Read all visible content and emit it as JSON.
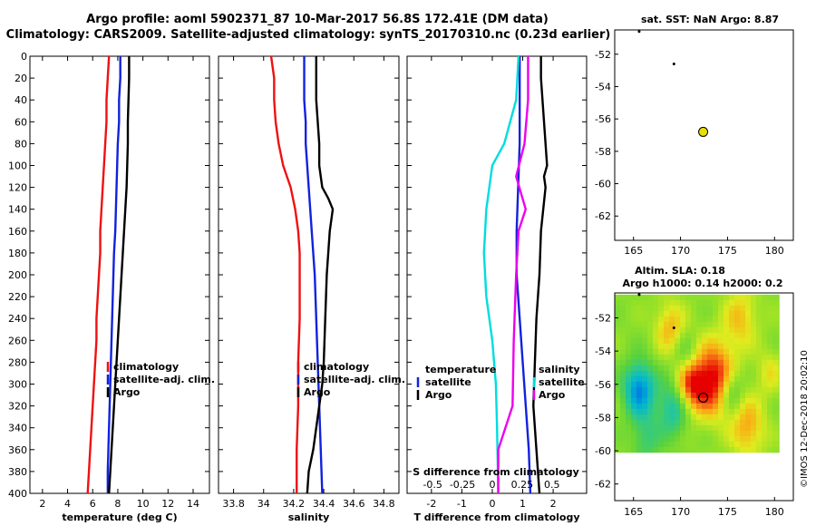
{
  "title_line1": "Argo profile: aoml 5902371_87 10-Mar-2017 56.8S 172.41E (DM data)",
  "title_line2": "Climatology: CARS2009. Satellite-adjusted climatology: synTS_20170310.nc (0.23d earlier)",
  "credit": "©IMOS 12-Dec-2018 20:02:10",
  "colors": {
    "climatology": "#ee1111",
    "satellite": "#1122dd",
    "argo": "#000000",
    "s_satellite": "#00dddd",
    "s_argo": "#ee00ee",
    "profile_marker": "#e8e000"
  },
  "chart_data": [
    {
      "id": "temperature",
      "type": "line",
      "xlabel": "temperature (deg C)",
      "xlim": [
        1,
        15.3
      ],
      "xticks": [
        2,
        4,
        6,
        8,
        10,
        12,
        14
      ],
      "ylim": [
        0,
        400
      ],
      "yticks": [
        0,
        20,
        40,
        60,
        80,
        100,
        120,
        140,
        160,
        180,
        200,
        220,
        240,
        260,
        280,
        300,
        320,
        340,
        360,
        380,
        400
      ],
      "legend": [
        "climatology",
        "satellite-adj. clim.",
        "Argo"
      ],
      "series": [
        {
          "name": "climatology",
          "color_key": "climatology",
          "depth": [
            0,
            20,
            40,
            60,
            80,
            100,
            120,
            140,
            160,
            180,
            200,
            220,
            240,
            260,
            280,
            300,
            320,
            340,
            360,
            380,
            400
          ],
          "values": [
            7.3,
            7.2,
            7.1,
            7.1,
            7.0,
            6.9,
            6.8,
            6.7,
            6.6,
            6.6,
            6.5,
            6.4,
            6.3,
            6.3,
            6.2,
            6.1,
            6.0,
            5.9,
            5.8,
            5.7,
            5.6
          ]
        },
        {
          "name": "satellite-adj. clim.",
          "color_key": "satellite",
          "depth": [
            0,
            20,
            40,
            60,
            80,
            100,
            120,
            140,
            160,
            180,
            200,
            220,
            240,
            260,
            280,
            300,
            320,
            340,
            360,
            380,
            400
          ],
          "values": [
            8.2,
            8.2,
            8.1,
            8.1,
            8.0,
            7.95,
            7.9,
            7.85,
            7.8,
            7.7,
            7.65,
            7.6,
            7.55,
            7.5,
            7.45,
            7.4,
            7.35,
            7.3,
            7.25,
            7.2,
            7.2
          ]
        },
        {
          "name": "Argo",
          "color_key": "argo",
          "depth": [
            0,
            20,
            40,
            60,
            80,
            100,
            120,
            140,
            160,
            180,
            200,
            220,
            240,
            260,
            280,
            300,
            320,
            340,
            360,
            380,
            400
          ],
          "values": [
            8.9,
            8.9,
            8.85,
            8.8,
            8.8,
            8.75,
            8.7,
            8.6,
            8.5,
            8.4,
            8.3,
            8.2,
            8.1,
            8.0,
            7.9,
            7.8,
            7.7,
            7.6,
            7.5,
            7.4,
            7.3
          ]
        }
      ]
    },
    {
      "id": "salinity",
      "type": "line",
      "xlabel": "salinity",
      "xlim": [
        33.7,
        34.9
      ],
      "xticks": [
        33.8,
        34,
        34.2,
        34.4,
        34.6,
        34.8
      ],
      "ylim": [
        0,
        400
      ],
      "legend": [
        "climatology",
        "satellite-adj. clim.",
        "Argo"
      ],
      "series": [
        {
          "name": "climatology",
          "color_key": "climatology",
          "depth": [
            0,
            10,
            20,
            40,
            60,
            80,
            100,
            120,
            140,
            160,
            180,
            200,
            240,
            280,
            320,
            360,
            400
          ],
          "values": [
            34.05,
            34.06,
            34.07,
            34.07,
            34.08,
            34.1,
            34.13,
            34.18,
            34.21,
            34.23,
            34.24,
            34.24,
            34.24,
            34.23,
            34.23,
            34.22,
            34.22
          ]
        },
        {
          "name": "satellite-adj. clim.",
          "color_key": "satellite",
          "depth": [
            0,
            20,
            40,
            60,
            80,
            100,
            120,
            140,
            160,
            180,
            200,
            240,
            280,
            320,
            360,
            400
          ],
          "values": [
            34.27,
            34.27,
            34.27,
            34.28,
            34.28,
            34.29,
            34.3,
            34.31,
            34.32,
            34.33,
            34.34,
            34.35,
            34.36,
            34.37,
            34.38,
            34.39
          ]
        },
        {
          "name": "Argo",
          "color_key": "argo",
          "depth": [
            0,
            20,
            40,
            60,
            80,
            100,
            120,
            130,
            140,
            150,
            160,
            180,
            200,
            240,
            280,
            300,
            320,
            360,
            380,
            400
          ],
          "values": [
            34.35,
            34.35,
            34.35,
            34.36,
            34.37,
            34.37,
            34.39,
            34.43,
            34.46,
            34.45,
            34.44,
            34.43,
            34.42,
            34.41,
            34.4,
            34.39,
            34.37,
            34.33,
            34.3,
            34.29
          ]
        }
      ]
    },
    {
      "id": "differences",
      "type": "line",
      "xlabel": "T difference from climatology",
      "top_label": "S difference from climatology",
      "xlim": [
        -2.8,
        3.1
      ],
      "xticks": [
        -2,
        -1,
        0,
        1,
        2
      ],
      "s_ticks": [
        {
          "label": "-0.5",
          "at": -1.96
        },
        {
          "label": "-0.25",
          "at": -0.98
        },
        {
          "label": "0",
          "at": 0
        },
        {
          "label": "0.25",
          "at": 0.98
        },
        {
          "label": "0.5",
          "at": 1.96
        }
      ],
      "ylim": [
        0,
        400
      ],
      "legend_left_title": "temperature",
      "legend_right_title": "salinity",
      "legend": [
        "satellite",
        "Argo"
      ],
      "series": [
        {
          "name": "T satellite",
          "color_key": "satellite",
          "depth": [
            0,
            40,
            80,
            120,
            160,
            200,
            240,
            280,
            320,
            360,
            400
          ],
          "values": [
            0.9,
            0.9,
            0.9,
            0.85,
            0.8,
            0.8,
            0.9,
            1.0,
            1.1,
            1.2,
            1.25
          ]
        },
        {
          "name": "T Argo",
          "color_key": "argo",
          "depth": [
            0,
            20,
            60,
            100,
            110,
            120,
            160,
            200,
            240,
            280,
            320,
            360,
            400
          ],
          "values": [
            1.6,
            1.6,
            1.7,
            1.8,
            1.7,
            1.75,
            1.6,
            1.55,
            1.45,
            1.4,
            1.35,
            1.45,
            1.55
          ]
        },
        {
          "name": "S satellite",
          "color_key": "s_satellite",
          "depth": [
            0,
            40,
            80,
            100,
            140,
            180,
            220,
            260,
            300,
            340,
            400
          ],
          "values": [
            0.22,
            0.2,
            0.1,
            0.0,
            -0.05,
            -0.07,
            -0.05,
            0.0,
            0.03,
            0.04,
            0.05
          ]
        },
        {
          "name": "S Argo",
          "color_key": "s_argo",
          "depth": [
            0,
            40,
            80,
            110,
            140,
            160,
            200,
            260,
            320,
            360,
            400
          ],
          "values": [
            0.3,
            0.3,
            0.27,
            0.2,
            0.28,
            0.22,
            0.2,
            0.18,
            0.17,
            0.05,
            0.05
          ]
        }
      ]
    },
    {
      "id": "sst_map",
      "type": "scatter",
      "title": "sat. SST: NaN Argo: 8.87",
      "xlim": [
        163,
        182
      ],
      "xticks": [
        165,
        170,
        175,
        180
      ],
      "ylim": [
        -63.5,
        -50.5
      ],
      "yticks": [
        -52,
        -54,
        -56,
        -58,
        -60,
        -62
      ],
      "points": [
        {
          "name": "argo-profile",
          "lon": 172.41,
          "lat": -56.8
        },
        {
          "name": "dot-1",
          "lon": 169.3,
          "lat": -52.6
        },
        {
          "name": "dot-2",
          "lon": 165.6,
          "lat": -50.6
        }
      ]
    },
    {
      "id": "sla_map",
      "type": "heatmap",
      "title_line1": "Altim. SLA: 0.18",
      "title_line2": "Argo h1000: 0.14 h2000: 0.2",
      "xlim": [
        163,
        182
      ],
      "xticks": [
        165,
        170,
        175,
        180
      ],
      "ylim": [
        -63,
        -50.5
      ],
      "yticks": [
        -52,
        -54,
        -56,
        -58,
        -60,
        -62
      ],
      "field_extent": {
        "lon": [
          163,
          180.5
        ],
        "lat": [
          -60.1,
          -50.6
        ]
      },
      "blobs": [
        {
          "lon": 173.6,
          "lat": -55.7,
          "r": 2.2,
          "v": 1.0
        },
        {
          "lon": 171.0,
          "lat": -56.1,
          "r": 1.6,
          "v": 0.8
        },
        {
          "lon": 168.9,
          "lat": -52.6,
          "r": 1.6,
          "v": 0.5
        },
        {
          "lon": 176.4,
          "lat": -52.0,
          "r": 1.8,
          "v": 0.45
        },
        {
          "lon": 177.2,
          "lat": -58.6,
          "r": 1.8,
          "v": 0.55
        },
        {
          "lon": 179.5,
          "lat": -55.3,
          "r": 1.4,
          "v": 0.3
        },
        {
          "lon": 165.6,
          "lat": -56.3,
          "r": 1.6,
          "v": -0.95
        },
        {
          "lon": 169.3,
          "lat": -57.4,
          "r": 1.7,
          "v": -0.6
        },
        {
          "lon": 175.4,
          "lat": -56.4,
          "r": 1.3,
          "v": -0.5
        },
        {
          "lon": 166.3,
          "lat": -59.3,
          "r": 1.5,
          "v": -0.35
        },
        {
          "lon": 170.5,
          "lat": -54.2,
          "r": 1.3,
          "v": -0.3
        }
      ],
      "points": [
        {
          "name": "argo-profile",
          "lon": 172.41,
          "lat": -56.8
        },
        {
          "name": "dot-1",
          "lon": 169.3,
          "lat": -52.6
        },
        {
          "name": "dot-2",
          "lon": 165.6,
          "lat": -50.6
        }
      ]
    }
  ]
}
